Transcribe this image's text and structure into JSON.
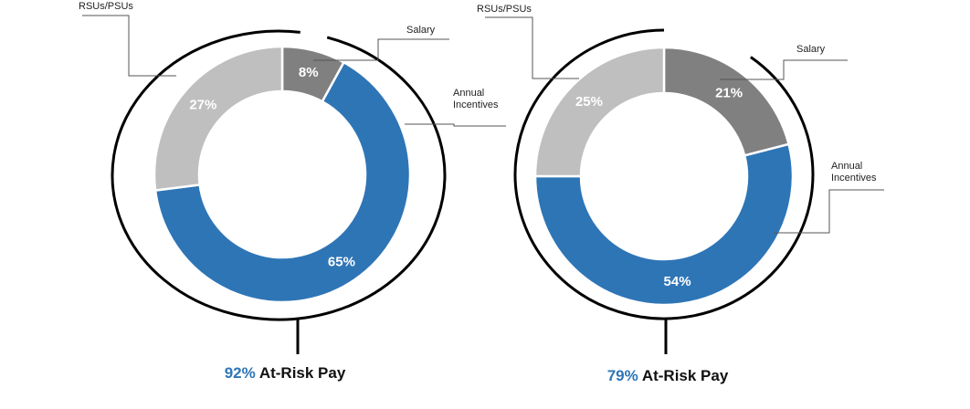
{
  "colors": {
    "Salary": "#808080",
    "Annual Incentives": "#2E75B6",
    "RSUs/PSUs": "#BFBFBF",
    "accent": "#2E75B6",
    "ring": "#000000"
  },
  "chart_data": [
    {
      "type": "pie",
      "subtype": "donut",
      "categories": [
        "Salary",
        "Annual Incentives",
        "RSUs/PSUs"
      ],
      "labels": [
        "Salary",
        "Annual\nIncentives",
        "RSUs/PSUs"
      ],
      "values": [
        8,
        65,
        27
      ],
      "value_labels": [
        "8%",
        "65%",
        "27%"
      ],
      "title_value": "92%",
      "title_text": "At-Risk Pay"
    },
    {
      "type": "pie",
      "subtype": "donut",
      "categories": [
        "Salary",
        "Annual Incentives",
        "RSUs/PSUs"
      ],
      "labels": [
        "Salary",
        "Annual\nIncentives",
        "RSUs/PSUs"
      ],
      "values": [
        21,
        54,
        25
      ],
      "value_labels": [
        "21%",
        "54%",
        "25%"
      ],
      "title_value": "79%",
      "title_text": "At-Risk Pay"
    }
  ]
}
